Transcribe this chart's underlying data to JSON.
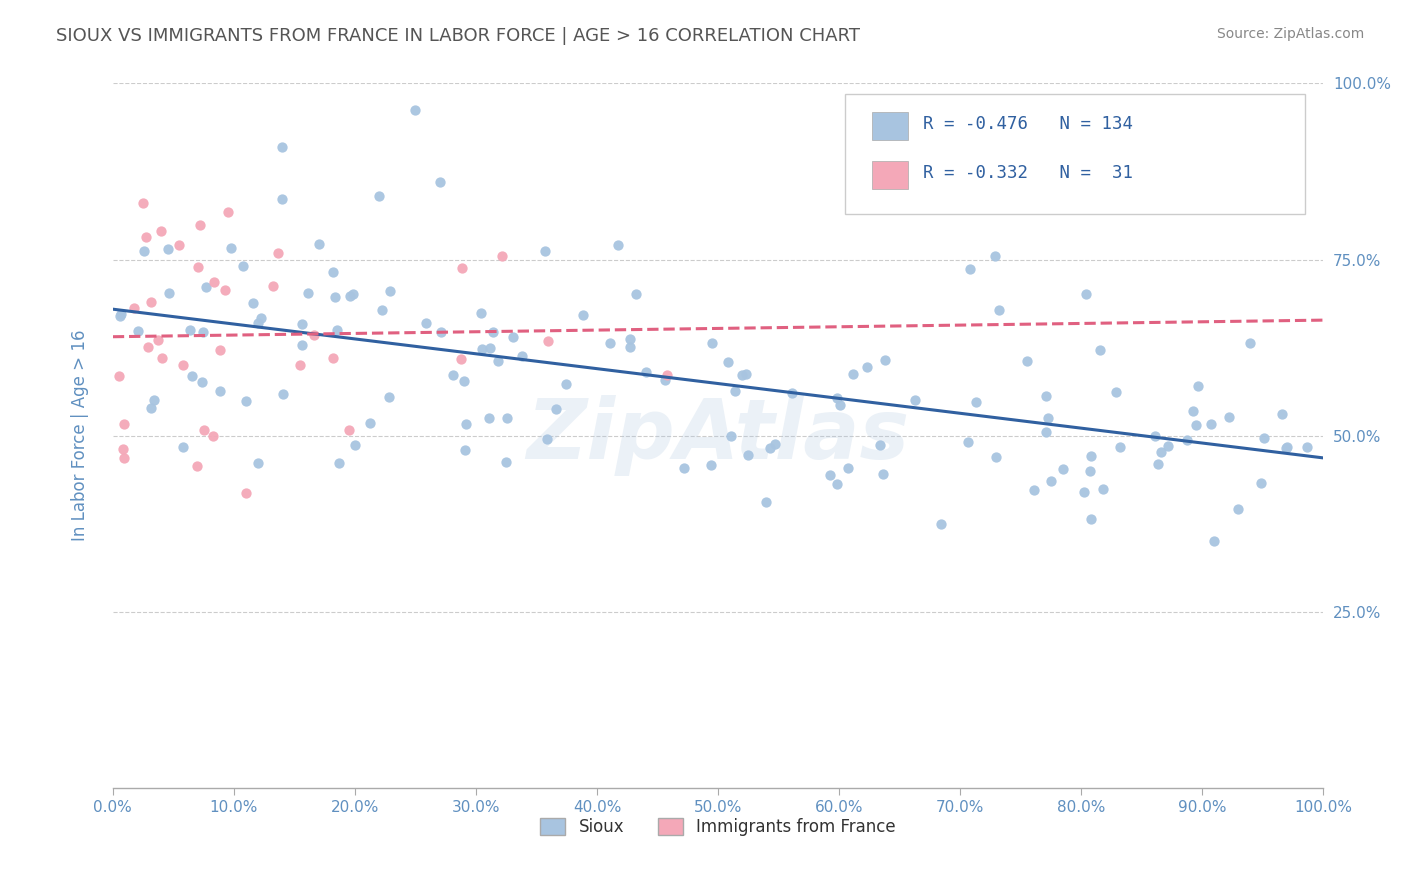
{
  "title": "SIOUX VS IMMIGRANTS FROM FRANCE IN LABOR FORCE | AGE > 16 CORRELATION CHART",
  "source_text": "Source: ZipAtlas.com",
  "ylabel": "In Labor Force | Age > 16",
  "legend_r1": "-0.476",
  "legend_n1": "134",
  "legend_r2": "-0.332",
  "legend_n2": "31",
  "legend_label1": "Sioux",
  "legend_label2": "Immigrants from France",
  "sioux_color": "#a8c4e0",
  "france_color": "#f4a8b8",
  "sioux_line_color": "#3060a0",
  "france_line_color": "#e06080",
  "title_color": "#555555",
  "axis_label_color": "#6090c0",
  "tick_color": "#6090c0",
  "grid_color": "#cccccc",
  "background_color": "#ffffff",
  "watermark_color": "#b0c8e0",
  "xmin": 0.0,
  "xmax": 100.0,
  "ymin": 0.0,
  "ymax": 100.0,
  "yticks": [
    25.0,
    50.0,
    75.0,
    100.0
  ],
  "xticks": [
    0.0,
    10.0,
    20.0,
    30.0,
    40.0,
    50.0,
    60.0,
    70.0,
    80.0,
    90.0,
    100.0
  ],
  "sioux_n": 134,
  "france_n": 31,
  "sioux_seed": 42,
  "france_seed": 7
}
